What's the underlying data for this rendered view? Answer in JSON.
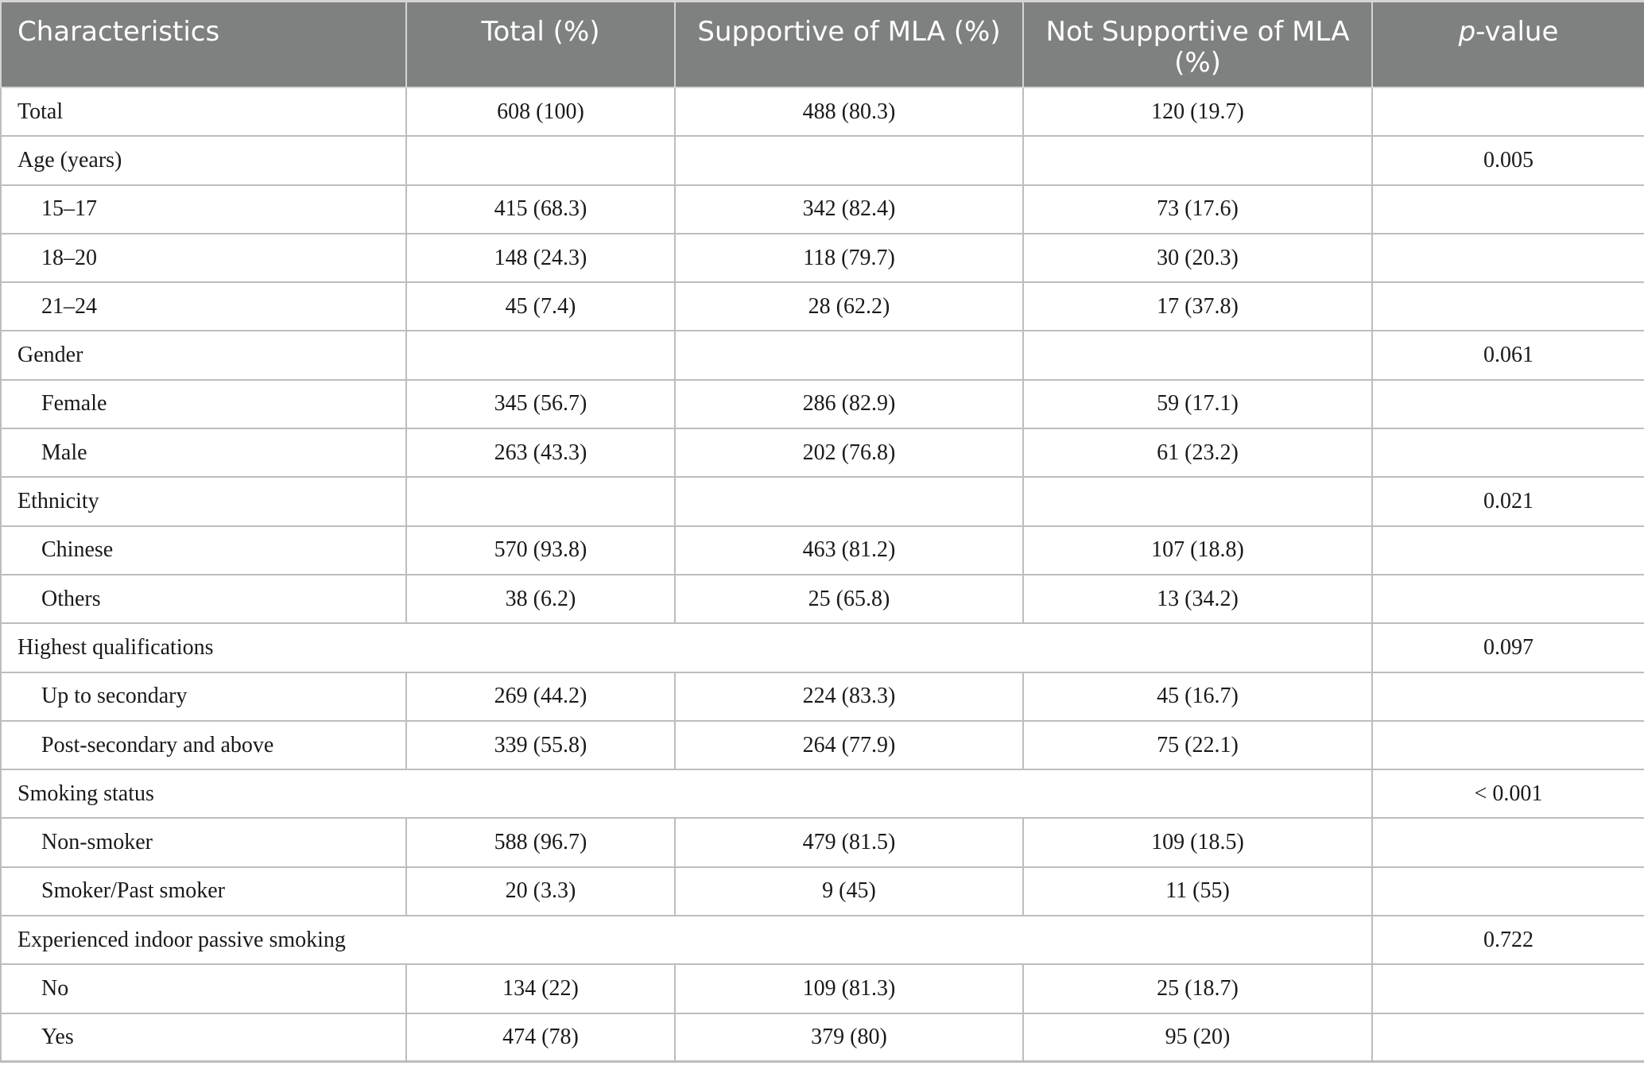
{
  "header": {
    "characteristics": "Characteristics",
    "total": "Total (%)",
    "supportive": "Supportive of MLA (%)",
    "not_supportive": "Not Supportive of MLA (%)",
    "p_italic": "p",
    "p_rest": "-value"
  },
  "rows": [
    {
      "type": "data",
      "label": "Total",
      "indent": false,
      "total": "608 (100)",
      "supportive": "488 (80.3)",
      "not_supportive": "120 (19.7)",
      "p": ""
    },
    {
      "type": "group",
      "label": "Age (years)",
      "span": false,
      "p": "0.005"
    },
    {
      "type": "data",
      "label": "15–17",
      "indent": true,
      "total": "415 (68.3)",
      "supportive": "342 (82.4)",
      "not_supportive": "73 (17.6)",
      "p": ""
    },
    {
      "type": "data",
      "label": "18–20",
      "indent": true,
      "total": "148 (24.3)",
      "supportive": "118 (79.7)",
      "not_supportive": "30 (20.3)",
      "p": ""
    },
    {
      "type": "data",
      "label": "21–24",
      "indent": true,
      "total": "45 (7.4)",
      "supportive": "28 (62.2)",
      "not_supportive": "17 (37.8)",
      "p": ""
    },
    {
      "type": "group",
      "label": "Gender",
      "span": false,
      "p": "0.061"
    },
    {
      "type": "data",
      "label": "Female",
      "indent": true,
      "total": "345 (56.7)",
      "supportive": "286 (82.9)",
      "not_supportive": "59 (17.1)",
      "p": ""
    },
    {
      "type": "data",
      "label": "Male",
      "indent": true,
      "total": "263 (43.3)",
      "supportive": "202 (76.8)",
      "not_supportive": "61 (23.2)",
      "p": ""
    },
    {
      "type": "group",
      "label": "Ethnicity",
      "span": false,
      "p": "0.021"
    },
    {
      "type": "data",
      "label": "Chinese",
      "indent": true,
      "total": "570 (93.8)",
      "supportive": "463 (81.2)",
      "not_supportive": "107 (18.8)",
      "p": ""
    },
    {
      "type": "data",
      "label": "Others",
      "indent": true,
      "total": "38 (6.2)",
      "supportive": "25 (65.8)",
      "not_supportive": "13 (34.2)",
      "p": ""
    },
    {
      "type": "group",
      "label": "Highest qualifications",
      "span": true,
      "p": "0.097"
    },
    {
      "type": "data",
      "label": "Up to secondary",
      "indent": true,
      "total": "269 (44.2)",
      "supportive": "224 (83.3)",
      "not_supportive": "45 (16.7)",
      "p": ""
    },
    {
      "type": "data",
      "label": "Post-secondary and above",
      "indent": true,
      "total": "339 (55.8)",
      "supportive": "264 (77.9)",
      "not_supportive": "75 (22.1)",
      "p": ""
    },
    {
      "type": "group",
      "label": "Smoking status",
      "span": true,
      "p": "< 0.001"
    },
    {
      "type": "data",
      "label": "Non-smoker",
      "indent": true,
      "total": "588 (96.7)",
      "supportive": "479 (81.5)",
      "not_supportive": "109 (18.5)",
      "p": ""
    },
    {
      "type": "data",
      "label": "Smoker/Past smoker",
      "indent": true,
      "total": "20 (3.3)",
      "supportive": "9 (45)",
      "not_supportive": "11 (55)",
      "p": ""
    },
    {
      "type": "group",
      "label": "Experienced indoor passive smoking",
      "span": true,
      "p": "0.722"
    },
    {
      "type": "data",
      "label": "No",
      "indent": true,
      "total": "134 (22)",
      "supportive": "109 (81.3)",
      "not_supportive": "25 (18.7)",
      "p": ""
    },
    {
      "type": "data",
      "label": "Yes",
      "indent": true,
      "total": "474 (78)",
      "supportive": "379 (80)",
      "not_supportive": "95 (20)",
      "p": ""
    }
  ]
}
